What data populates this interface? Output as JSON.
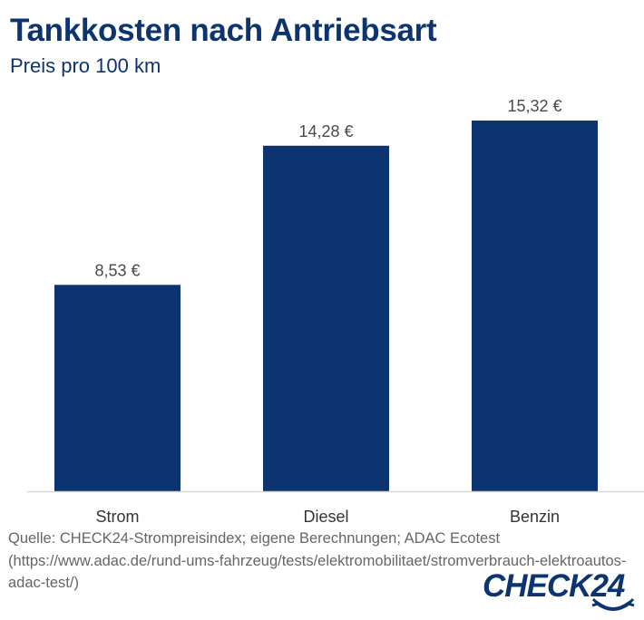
{
  "header": {
    "title": "Tankkosten nach Antriebsart",
    "subtitle": "Preis pro 100 km"
  },
  "chart_data": {
    "type": "bar",
    "title": "Tankkosten nach Antriebsart",
    "subtitle": "Preis pro 100 km",
    "categories": [
      "Strom",
      "Diesel",
      "Benzin"
    ],
    "values": [
      8.53,
      14.28,
      15.32
    ],
    "data_labels": [
      "8,53 €",
      "14,28 €",
      "15,32 €"
    ],
    "xlabel": "",
    "ylabel": "",
    "ylim": [
      0,
      15.32
    ],
    "unit": "€",
    "grid": false,
    "legend": "none",
    "bar_color": "#0b3470"
  },
  "footer": {
    "source_lines": [
      "Quelle: CHECK24-Strompreisindex; eigene Berechnungen; ADAC Ecotest",
      "(https://www.adac.de/rund-ums-fahrzeug/tests/elektromobilitaet/stromverbrauch-elektroautos-",
      "adac-test/)"
    ],
    "logo_text": "CHECK24"
  },
  "colors": {
    "brand": "#0b3470",
    "label_text": "#4a4a4a",
    "source_text": "#666666",
    "axis": "#d8d8d8"
  }
}
